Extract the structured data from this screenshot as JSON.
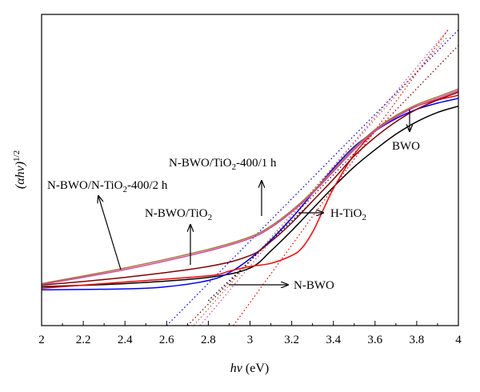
{
  "chart_data": {
    "type": "line",
    "title": "",
    "xlabel": "hν (eV)",
    "xlabel_parts": {
      "symbol": "hν",
      "unit": " (eV)"
    },
    "ylabel": "(αhν)1/2",
    "ylabel_parts": {
      "base": "(αhν)",
      "exponent": "1/2"
    },
    "xlim": [
      2,
      4
    ],
    "ylim": [
      0,
      1
    ],
    "x_ticks": [
      "2",
      "2.2",
      "2.4",
      "2.6",
      "2.8",
      "3",
      "3.2",
      "3.4",
      "3.6",
      "3.8",
      "4"
    ],
    "y_ticks_labeled": false,
    "grid": false,
    "legend": "none (inline annotations)",
    "series": [
      {
        "label_ref": "BWO",
        "color": "#000000",
        "x": [
          2.0,
          2.4,
          2.8,
          3.0,
          3.1,
          3.2,
          3.3,
          3.4,
          3.5,
          3.6,
          3.7,
          3.8,
          3.9,
          4.0
        ],
        "y": [
          0.125,
          0.135,
          0.155,
          0.185,
          0.24,
          0.305,
          0.375,
          0.445,
          0.51,
          0.565,
          0.615,
          0.655,
          0.685,
          0.705
        ]
      },
      {
        "label_ref": "N-BWO",
        "color": "#0000ff",
        "x": [
          2.0,
          2.4,
          2.6,
          2.8,
          2.9,
          3.0,
          3.1,
          3.2,
          3.3,
          3.4,
          3.5,
          3.6,
          3.7,
          3.8,
          3.9,
          4.0
        ],
        "y": [
          0.115,
          0.118,
          0.125,
          0.145,
          0.17,
          0.215,
          0.275,
          0.345,
          0.425,
          0.505,
          0.575,
          0.625,
          0.665,
          0.695,
          0.715,
          0.73
        ]
      },
      {
        "label_ref": "H-TiO2",
        "color": "#ff0000",
        "x": [
          2.0,
          2.4,
          2.8,
          2.9,
          3.0,
          3.1,
          3.2,
          3.25,
          3.3,
          3.35,
          3.4,
          3.5,
          3.6,
          3.7,
          3.8,
          3.9,
          4.0
        ],
        "y": [
          0.12,
          0.14,
          0.16,
          0.175,
          0.19,
          0.2,
          0.225,
          0.25,
          0.3,
          0.37,
          0.44,
          0.55,
          0.625,
          0.67,
          0.705,
          0.725,
          0.74
        ]
      },
      {
        "label_ref": "N-BWO/TiO2",
        "color": "#800000",
        "x": [
          2.0,
          2.4,
          2.8,
          3.0,
          3.1,
          3.2,
          3.3,
          3.4,
          3.5,
          3.6,
          3.7,
          3.8,
          3.9,
          4.0
        ],
        "y": [
          0.13,
          0.155,
          0.19,
          0.225,
          0.27,
          0.33,
          0.4,
          0.47,
          0.545,
          0.605,
          0.655,
          0.695,
          0.725,
          0.75
        ]
      },
      {
        "label_ref": "N-BWO/TiO2-400/1h",
        "color": "#9c7a3c",
        "x": [
          2.0,
          2.4,
          2.8,
          3.0,
          3.1,
          3.2,
          3.3,
          3.4,
          3.5,
          3.6,
          3.7,
          3.8,
          3.9,
          4.0
        ],
        "y": [
          0.135,
          0.185,
          0.245,
          0.285,
          0.32,
          0.37,
          0.43,
          0.5,
          0.57,
          0.63,
          0.675,
          0.71,
          0.735,
          0.76
        ]
      },
      {
        "label_ref": "N-BWO/N-TiO2-400/2h",
        "color": "#e0409a",
        "x": [
          2.0,
          2.4,
          2.8,
          3.0,
          3.1,
          3.2,
          3.3,
          3.4,
          3.5,
          3.6,
          3.7,
          3.8,
          3.9,
          4.0
        ],
        "y": [
          0.132,
          0.18,
          0.24,
          0.28,
          0.315,
          0.365,
          0.425,
          0.495,
          0.565,
          0.625,
          0.67,
          0.705,
          0.73,
          0.755
        ]
      }
    ],
    "tangent_lines": [
      {
        "color": "#0000ff",
        "x": [
          2.6,
          4.0
        ],
        "y": [
          0.0,
          0.95
        ]
      },
      {
        "color": "#800000",
        "x": [
          2.7,
          4.0
        ],
        "y": [
          0.0,
          0.9
        ]
      },
      {
        "color": "#9c7a3c",
        "x": [
          2.73,
          3.95
        ],
        "y": [
          0.0,
          0.93
        ]
      },
      {
        "color": "#e0409a",
        "x": [
          2.76,
          3.95
        ],
        "y": [
          0.0,
          0.95
        ]
      },
      {
        "color": "#000000",
        "x": [
          2.8,
          3.3
        ],
        "y": [
          0.08,
          0.4
        ]
      },
      {
        "color": "#ff0000",
        "x": [
          2.92,
          3.95
        ],
        "y": [
          0.0,
          0.95
        ]
      }
    ],
    "annotations": [
      {
        "id": "bwo",
        "label": "BWO"
      },
      {
        "id": "n-bwo-tio2-1h",
        "label": "N-BWO/TiO",
        "sub": "2",
        "suffix": "-400/1 h"
      },
      {
        "id": "n-bwo-ntio2-2h",
        "label": "N-BWO/N-TiO",
        "sub": "2",
        "suffix": "-400/2 h"
      },
      {
        "id": "n-bwo-tio2",
        "label": "N-BWO/TiO",
        "sub": "2",
        "suffix": ""
      },
      {
        "id": "h-tio2",
        "label": "H-TiO",
        "sub": "2",
        "suffix": ""
      },
      {
        "id": "n-bwo",
        "label": "N-BWO"
      }
    ]
  }
}
